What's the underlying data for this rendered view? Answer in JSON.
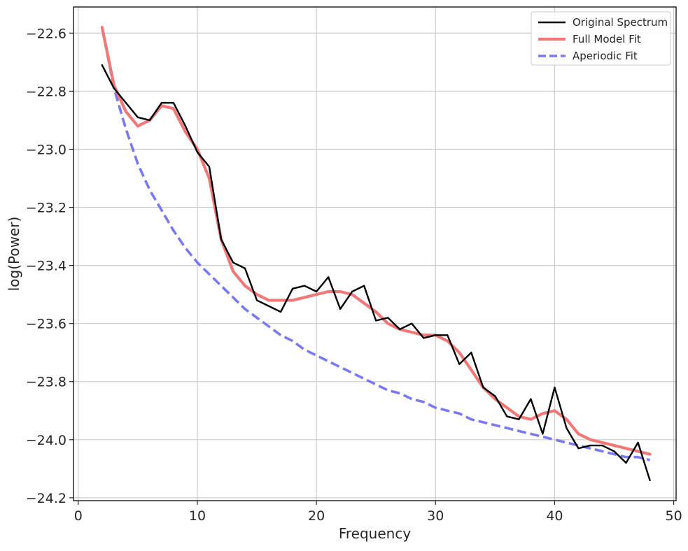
{
  "chart_data": {
    "type": "line",
    "title": "",
    "xlabel": "Frequency",
    "ylabel": "log(Power)",
    "xlim": [
      -0.4,
      50.2
    ],
    "ylim": [
      -24.21,
      -22.51
    ],
    "xticks": [
      0,
      10,
      20,
      30,
      40,
      50
    ],
    "yticks": [
      -24.2,
      -24.0,
      -23.8,
      -23.6,
      -23.4,
      -23.2,
      -23.0,
      -22.8,
      -22.6
    ],
    "xtick_labels": [
      "0",
      "10",
      "20",
      "30",
      "40",
      "50"
    ],
    "ytick_labels": [
      "−24.2",
      "−24.0",
      "−23.8",
      "−23.6",
      "−23.4",
      "−23.2",
      "−23.0",
      "−22.8",
      "−22.6"
    ],
    "grid": true,
    "legend_position": "top-right",
    "x": [
      2,
      3,
      4,
      5,
      6,
      7,
      8,
      9,
      10,
      11,
      12,
      13,
      14,
      15,
      16,
      17,
      18,
      19,
      20,
      21,
      22,
      23,
      24,
      25,
      26,
      27,
      28,
      29,
      30,
      31,
      32,
      33,
      34,
      35,
      36,
      37,
      38,
      39,
      40,
      41,
      42,
      43,
      44,
      45,
      46,
      47,
      48
    ],
    "series": [
      {
        "name": "Original Spectrum",
        "color": "#000000",
        "style": "solid",
        "values": [
          -22.71,
          -22.79,
          -22.84,
          -22.89,
          -22.9,
          -22.84,
          -22.84,
          -22.92,
          -23.01,
          -23.06,
          -23.31,
          -23.39,
          -23.41,
          -23.52,
          -23.54,
          -23.56,
          -23.48,
          -23.47,
          -23.49,
          -23.44,
          -23.55,
          -23.49,
          -23.47,
          -23.59,
          -23.58,
          -23.62,
          -23.6,
          -23.65,
          -23.64,
          -23.64,
          -23.74,
          -23.7,
          -23.82,
          -23.85,
          -23.92,
          -23.93,
          -23.86,
          -23.98,
          -23.82,
          -23.96,
          -24.03,
          -24.02,
          -24.02,
          -24.04,
          -24.08,
          -24.01,
          -24.14
        ]
      },
      {
        "name": "Full Model Fit",
        "color": "#f07878",
        "style": "solid",
        "values": [
          -22.58,
          -22.78,
          -22.87,
          -22.92,
          -22.9,
          -22.85,
          -22.86,
          -22.94,
          -23.0,
          -23.1,
          -23.31,
          -23.42,
          -23.47,
          -23.5,
          -23.52,
          -23.52,
          -23.52,
          -23.51,
          -23.5,
          -23.49,
          -23.49,
          -23.5,
          -23.53,
          -23.56,
          -23.6,
          -23.62,
          -23.63,
          -23.64,
          -23.64,
          -23.66,
          -23.7,
          -23.76,
          -23.82,
          -23.86,
          -23.89,
          -23.92,
          -23.93,
          -23.91,
          -23.9,
          -23.93,
          -23.98,
          -24.0,
          -24.01,
          -24.02,
          -24.03,
          -24.04,
          -24.05
        ]
      },
      {
        "name": "Aperiodic Fit",
        "color": "#7a7af0",
        "style": "dashed",
        "values": [
          -22.58,
          -22.79,
          -22.93,
          -23.05,
          -23.14,
          -23.21,
          -23.28,
          -23.34,
          -23.39,
          -23.43,
          -23.47,
          -23.51,
          -23.55,
          -23.58,
          -23.61,
          -23.64,
          -23.66,
          -23.69,
          -23.71,
          -23.73,
          -23.75,
          -23.77,
          -23.79,
          -23.81,
          -23.83,
          -23.84,
          -23.86,
          -23.87,
          -23.89,
          -23.9,
          -23.91,
          -23.93,
          -23.94,
          -23.95,
          -23.96,
          -23.97,
          -23.98,
          -23.99,
          -24.0,
          -24.01,
          -24.02,
          -24.03,
          -24.04,
          -24.05,
          -24.06,
          -24.06,
          -24.07
        ]
      }
    ]
  }
}
